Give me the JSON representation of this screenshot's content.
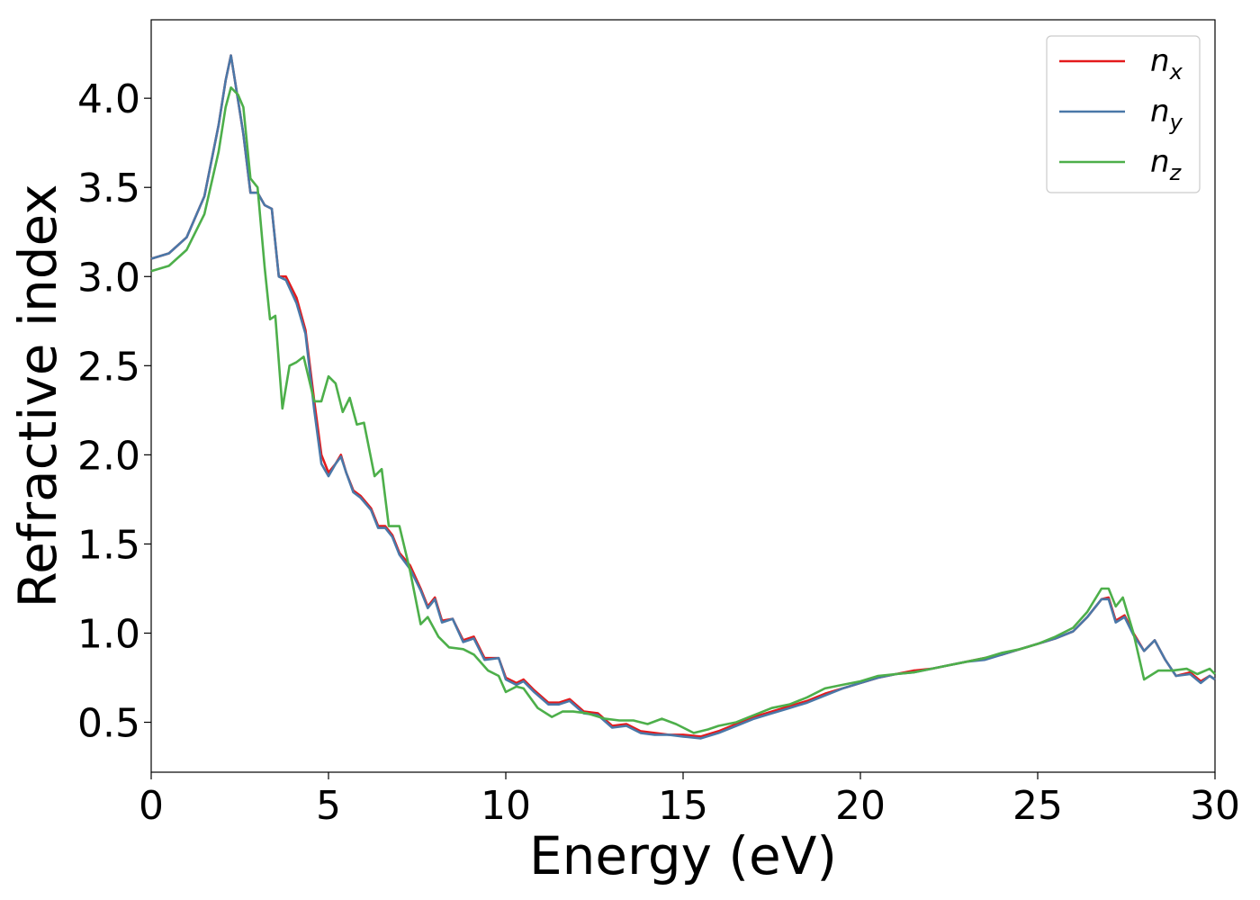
{
  "chart_data": {
    "type": "line",
    "title": "",
    "xlabel": "Energy (eV)",
    "ylabel": "Refractive index",
    "xlim": [
      0,
      30
    ],
    "ylim": [
      0.22,
      4.44
    ],
    "xticks": [
      0,
      5,
      10,
      15,
      20,
      25,
      30
    ],
    "xtick_labels": [
      "0",
      "5",
      "10",
      "15",
      "20",
      "25",
      "30"
    ],
    "yticks": [
      0.5,
      1.0,
      1.5,
      2.0,
      2.5,
      3.0,
      3.5,
      4.0
    ],
    "ytick_labels": [
      "0.5",
      "1.0",
      "1.5",
      "2.0",
      "2.5",
      "3.0",
      "3.5",
      "4.0"
    ],
    "grid": false,
    "legend_position": "top-right",
    "series": [
      {
        "name": "n_x",
        "legend_base": "n",
        "legend_sub": "x",
        "color": "#e41a1c",
        "points": [
          [
            0,
            3.1
          ],
          [
            0.5,
            3.13
          ],
          [
            1.0,
            3.22
          ],
          [
            1.5,
            3.45
          ],
          [
            1.9,
            3.85
          ],
          [
            2.1,
            4.1
          ],
          [
            2.25,
            4.24
          ],
          [
            2.4,
            4.05
          ],
          [
            2.6,
            3.8
          ],
          [
            2.8,
            3.47
          ],
          [
            3.0,
            3.47
          ],
          [
            3.2,
            3.4
          ],
          [
            3.4,
            3.38
          ],
          [
            3.6,
            3.0
          ],
          [
            3.8,
            3.0
          ],
          [
            4.1,
            2.88
          ],
          [
            4.35,
            2.7
          ],
          [
            4.6,
            2.3
          ],
          [
            4.8,
            2.0
          ],
          [
            5.0,
            1.9
          ],
          [
            5.2,
            1.95
          ],
          [
            5.35,
            2.0
          ],
          [
            5.5,
            1.9
          ],
          [
            5.7,
            1.8
          ],
          [
            5.9,
            1.77
          ],
          [
            6.2,
            1.7
          ],
          [
            6.4,
            1.6
          ],
          [
            6.6,
            1.6
          ],
          [
            6.8,
            1.55
          ],
          [
            7.0,
            1.45
          ],
          [
            7.3,
            1.38
          ],
          [
            7.6,
            1.25
          ],
          [
            7.8,
            1.15
          ],
          [
            8.0,
            1.2
          ],
          [
            8.2,
            1.07
          ],
          [
            8.5,
            1.08
          ],
          [
            8.8,
            0.96
          ],
          [
            9.1,
            0.98
          ],
          [
            9.4,
            0.86
          ],
          [
            9.8,
            0.86
          ],
          [
            10.0,
            0.75
          ],
          [
            10.3,
            0.72
          ],
          [
            10.5,
            0.74
          ],
          [
            10.8,
            0.68
          ],
          [
            11.2,
            0.61
          ],
          [
            11.5,
            0.61
          ],
          [
            11.8,
            0.63
          ],
          [
            12.2,
            0.56
          ],
          [
            12.6,
            0.55
          ],
          [
            13.0,
            0.48
          ],
          [
            13.4,
            0.49
          ],
          [
            13.8,
            0.45
          ],
          [
            14.2,
            0.44
          ],
          [
            14.6,
            0.43
          ],
          [
            15.0,
            0.43
          ],
          [
            15.5,
            0.42
          ],
          [
            16.0,
            0.45
          ],
          [
            16.5,
            0.49
          ],
          [
            17.0,
            0.53
          ],
          [
            17.5,
            0.56
          ],
          [
            18.0,
            0.59
          ],
          [
            18.5,
            0.62
          ],
          [
            19.0,
            0.66
          ],
          [
            19.5,
            0.69
          ],
          [
            20.0,
            0.72
          ],
          [
            20.5,
            0.75
          ],
          [
            21.0,
            0.77
          ],
          [
            21.5,
            0.79
          ],
          [
            22.0,
            0.8
          ],
          [
            22.5,
            0.82
          ],
          [
            23.0,
            0.84
          ],
          [
            23.5,
            0.86
          ],
          [
            24.0,
            0.88
          ],
          [
            24.5,
            0.91
          ],
          [
            25.0,
            0.94
          ],
          [
            25.5,
            0.97
          ],
          [
            26.0,
            1.01
          ],
          [
            26.4,
            1.09
          ],
          [
            26.8,
            1.19
          ],
          [
            27.0,
            1.2
          ],
          [
            27.2,
            1.07
          ],
          [
            27.45,
            1.1
          ],
          [
            27.7,
            1.0
          ],
          [
            28.0,
            0.9
          ],
          [
            28.3,
            0.96
          ],
          [
            28.6,
            0.85
          ],
          [
            28.9,
            0.76
          ],
          [
            29.3,
            0.78
          ],
          [
            29.6,
            0.73
          ],
          [
            29.85,
            0.76
          ],
          [
            30.0,
            0.74
          ]
        ]
      },
      {
        "name": "n_y",
        "legend_base": "n",
        "legend_sub": "y",
        "color": "#4a78a8",
        "points": [
          [
            0,
            3.1
          ],
          [
            0.5,
            3.13
          ],
          [
            1.0,
            3.22
          ],
          [
            1.5,
            3.45
          ],
          [
            1.9,
            3.85
          ],
          [
            2.1,
            4.1
          ],
          [
            2.25,
            4.24
          ],
          [
            2.4,
            4.05
          ],
          [
            2.6,
            3.8
          ],
          [
            2.8,
            3.47
          ],
          [
            3.0,
            3.47
          ],
          [
            3.2,
            3.4
          ],
          [
            3.4,
            3.38
          ],
          [
            3.6,
            3.0
          ],
          [
            3.8,
            2.98
          ],
          [
            4.1,
            2.85
          ],
          [
            4.35,
            2.68
          ],
          [
            4.6,
            2.25
          ],
          [
            4.8,
            1.95
          ],
          [
            5.0,
            1.88
          ],
          [
            5.2,
            1.95
          ],
          [
            5.35,
            1.99
          ],
          [
            5.5,
            1.9
          ],
          [
            5.7,
            1.79
          ],
          [
            5.9,
            1.76
          ],
          [
            6.2,
            1.69
          ],
          [
            6.4,
            1.59
          ],
          [
            6.6,
            1.59
          ],
          [
            6.8,
            1.54
          ],
          [
            7.0,
            1.44
          ],
          [
            7.3,
            1.36
          ],
          [
            7.6,
            1.24
          ],
          [
            7.8,
            1.14
          ],
          [
            8.0,
            1.19
          ],
          [
            8.2,
            1.06
          ],
          [
            8.5,
            1.08
          ],
          [
            8.8,
            0.95
          ],
          [
            9.1,
            0.97
          ],
          [
            9.4,
            0.85
          ],
          [
            9.8,
            0.86
          ],
          [
            10.0,
            0.74
          ],
          [
            10.3,
            0.71
          ],
          [
            10.5,
            0.73
          ],
          [
            10.8,
            0.67
          ],
          [
            11.2,
            0.6
          ],
          [
            11.5,
            0.6
          ],
          [
            11.8,
            0.62
          ],
          [
            12.2,
            0.55
          ],
          [
            12.6,
            0.54
          ],
          [
            13.0,
            0.47
          ],
          [
            13.4,
            0.48
          ],
          [
            13.8,
            0.44
          ],
          [
            14.2,
            0.43
          ],
          [
            14.6,
            0.43
          ],
          [
            15.0,
            0.42
          ],
          [
            15.5,
            0.41
          ],
          [
            16.0,
            0.44
          ],
          [
            16.5,
            0.48
          ],
          [
            17.0,
            0.52
          ],
          [
            17.5,
            0.55
          ],
          [
            18.0,
            0.58
          ],
          [
            18.5,
            0.61
          ],
          [
            19.0,
            0.65
          ],
          [
            19.5,
            0.69
          ],
          [
            20.0,
            0.72
          ],
          [
            20.5,
            0.75
          ],
          [
            21.0,
            0.77
          ],
          [
            21.5,
            0.78
          ],
          [
            22.0,
            0.8
          ],
          [
            22.5,
            0.82
          ],
          [
            23.0,
            0.84
          ],
          [
            23.5,
            0.85
          ],
          [
            24.0,
            0.88
          ],
          [
            24.5,
            0.91
          ],
          [
            25.0,
            0.94
          ],
          [
            25.5,
            0.97
          ],
          [
            26.0,
            1.01
          ],
          [
            26.4,
            1.09
          ],
          [
            26.8,
            1.19
          ],
          [
            27.0,
            1.19
          ],
          [
            27.2,
            1.06
          ],
          [
            27.45,
            1.09
          ],
          [
            27.7,
            0.99
          ],
          [
            28.0,
            0.9
          ],
          [
            28.3,
            0.96
          ],
          [
            28.6,
            0.85
          ],
          [
            28.9,
            0.76
          ],
          [
            29.3,
            0.77
          ],
          [
            29.6,
            0.72
          ],
          [
            29.85,
            0.76
          ],
          [
            30.0,
            0.74
          ]
        ]
      },
      {
        "name": "n_z",
        "legend_base": "n",
        "legend_sub": "z",
        "color": "#4daf4a",
        "points": [
          [
            0,
            3.03
          ],
          [
            0.5,
            3.06
          ],
          [
            1.0,
            3.15
          ],
          [
            1.5,
            3.35
          ],
          [
            1.9,
            3.7
          ],
          [
            2.1,
            3.95
          ],
          [
            2.25,
            4.06
          ],
          [
            2.45,
            4.02
          ],
          [
            2.6,
            3.95
          ],
          [
            2.8,
            3.55
          ],
          [
            3.0,
            3.5
          ],
          [
            3.2,
            3.05
          ],
          [
            3.35,
            2.76
          ],
          [
            3.5,
            2.78
          ],
          [
            3.7,
            2.26
          ],
          [
            3.9,
            2.5
          ],
          [
            4.1,
            2.52
          ],
          [
            4.3,
            2.55
          ],
          [
            4.6,
            2.3
          ],
          [
            4.8,
            2.3
          ],
          [
            5.0,
            2.44
          ],
          [
            5.2,
            2.4
          ],
          [
            5.4,
            2.24
          ],
          [
            5.6,
            2.32
          ],
          [
            5.8,
            2.17
          ],
          [
            6.0,
            2.18
          ],
          [
            6.3,
            1.88
          ],
          [
            6.5,
            1.92
          ],
          [
            6.7,
            1.6
          ],
          [
            7.0,
            1.6
          ],
          [
            7.3,
            1.35
          ],
          [
            7.6,
            1.05
          ],
          [
            7.8,
            1.09
          ],
          [
            8.1,
            0.98
          ],
          [
            8.4,
            0.92
          ],
          [
            8.8,
            0.91
          ],
          [
            9.1,
            0.88
          ],
          [
            9.5,
            0.79
          ],
          [
            9.8,
            0.76
          ],
          [
            10.0,
            0.67
          ],
          [
            10.3,
            0.7
          ],
          [
            10.5,
            0.69
          ],
          [
            10.9,
            0.58
          ],
          [
            11.3,
            0.53
          ],
          [
            11.6,
            0.56
          ],
          [
            11.9,
            0.56
          ],
          [
            12.3,
            0.55
          ],
          [
            12.8,
            0.52
          ],
          [
            13.2,
            0.51
          ],
          [
            13.6,
            0.51
          ],
          [
            14.0,
            0.49
          ],
          [
            14.4,
            0.52
          ],
          [
            14.8,
            0.49
          ],
          [
            15.3,
            0.44
          ],
          [
            15.7,
            0.46
          ],
          [
            16.0,
            0.48
          ],
          [
            16.5,
            0.5
          ],
          [
            17.0,
            0.54
          ],
          [
            17.5,
            0.58
          ],
          [
            18.0,
            0.6
          ],
          [
            18.5,
            0.64
          ],
          [
            19.0,
            0.69
          ],
          [
            19.5,
            0.71
          ],
          [
            20.0,
            0.73
          ],
          [
            20.5,
            0.76
          ],
          [
            21.0,
            0.77
          ],
          [
            21.5,
            0.78
          ],
          [
            22.0,
            0.8
          ],
          [
            22.5,
            0.82
          ],
          [
            23.0,
            0.84
          ],
          [
            23.5,
            0.86
          ],
          [
            24.0,
            0.89
          ],
          [
            24.5,
            0.91
          ],
          [
            25.0,
            0.94
          ],
          [
            25.5,
            0.98
          ],
          [
            26.0,
            1.03
          ],
          [
            26.4,
            1.12
          ],
          [
            26.8,
            1.25
          ],
          [
            27.0,
            1.25
          ],
          [
            27.2,
            1.15
          ],
          [
            27.4,
            1.2
          ],
          [
            27.7,
            1.0
          ],
          [
            28.0,
            0.74
          ],
          [
            28.4,
            0.79
          ],
          [
            28.8,
            0.79
          ],
          [
            29.2,
            0.8
          ],
          [
            29.5,
            0.77
          ],
          [
            29.85,
            0.8
          ],
          [
            30.0,
            0.77
          ]
        ]
      }
    ]
  }
}
